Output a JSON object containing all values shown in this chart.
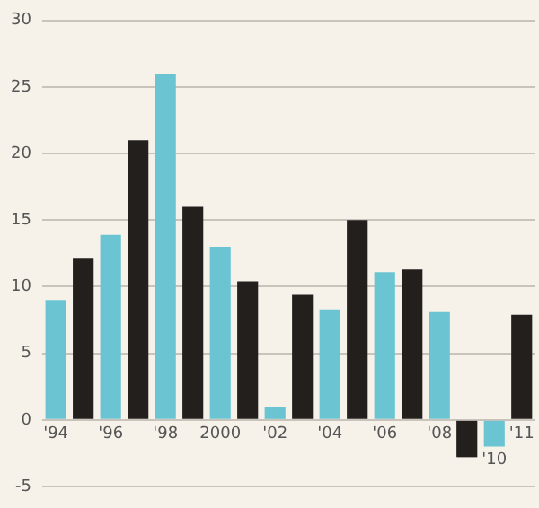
{
  "chart_data": {
    "type": "bar",
    "categories": [
      "'94",
      null,
      "'96",
      null,
      "'98",
      null,
      "2000",
      null,
      "'02",
      null,
      "'04",
      null,
      "'06",
      null,
      "'08",
      null,
      "'10",
      "'11"
    ],
    "values": [
      9,
      12.1,
      13.9,
      21,
      26,
      16,
      13,
      10.4,
      1,
      9.4,
      8.3,
      15,
      11.1,
      11.3,
      8.1,
      -2.8,
      -2,
      7.9
    ],
    "colors": [
      "#6ac4d2",
      "#231f1c",
      "#6ac4d2",
      "#231f1c",
      "#6ac4d2",
      "#231f1c",
      "#6ac4d2",
      "#231f1c",
      "#6ac4d2",
      "#231f1c",
      "#6ac4d2",
      "#231f1c",
      "#6ac4d2",
      "#231f1c",
      "#6ac4d2",
      "#231f1c",
      "#6ac4d2",
      "#231f1c"
    ],
    "ylim": [
      -5,
      30
    ],
    "yticks": [
      -5,
      0,
      5,
      10,
      15,
      20,
      25,
      30
    ],
    "grid": "y"
  }
}
